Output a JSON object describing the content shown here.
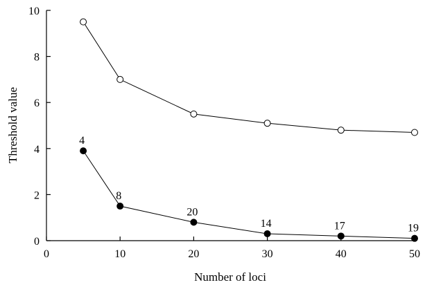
{
  "chart_data": {
    "type": "line",
    "xlabel": "Number of loci",
    "ylabel": "Threshold value",
    "xlim": [
      0,
      50
    ],
    "ylim": [
      0,
      10
    ],
    "xticks": [
      0,
      10,
      20,
      30,
      40,
      50
    ],
    "yticks": [
      0,
      2,
      4,
      6,
      8,
      10
    ],
    "grid": false,
    "series": [
      {
        "marker": "open-circle",
        "x": [
          5,
          10,
          20,
          30,
          40,
          50
        ],
        "y": [
          9.5,
          7.0,
          5.5,
          5.1,
          4.8,
          4.7
        ]
      },
      {
        "marker": "filled-circle",
        "x": [
          5,
          10,
          20,
          30,
          40,
          50
        ],
        "y": [
          3.9,
          1.5,
          0.8,
          0.3,
          0.2,
          0.1
        ],
        "labels": [
          "4",
          "8",
          "20",
          "14",
          "17",
          "19"
        ]
      }
    ]
  }
}
